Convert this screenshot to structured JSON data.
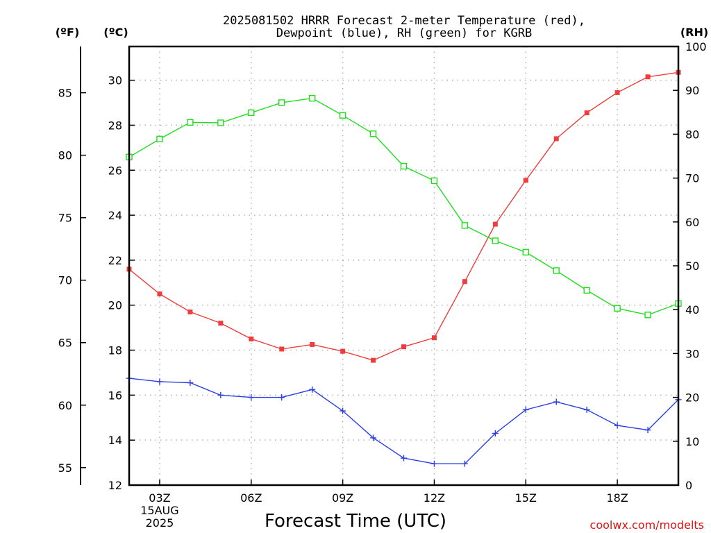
{
  "chart_data": {
    "type": "line",
    "title": [
      "2025081502 HRRR Forecast 2-meter Temperature (red),",
      "Dewpoint (blue), RH (green) for KGRB"
    ],
    "xlabel": "Forecast Time (UTC)",
    "credit": "coolwx.com/modelts",
    "units": {
      "fahrenheit": "(ºF)",
      "celsius": "(ºC)",
      "rh": "(RH)"
    },
    "x": [
      2,
      3,
      4,
      5,
      6,
      7,
      8,
      9,
      10,
      11,
      12,
      13,
      14,
      15,
      16,
      17,
      18,
      19,
      20
    ],
    "xlim": [
      2,
      20
    ],
    "x_ticks": [
      {
        "x": 3,
        "label": "03Z",
        "sub": [
          "15AUG",
          "2025"
        ]
      },
      {
        "x": 6,
        "label": "06Z"
      },
      {
        "x": 9,
        "label": "09Z"
      },
      {
        "x": 12,
        "label": "12Z"
      },
      {
        "x": 15,
        "label": "15Z"
      },
      {
        "x": 18,
        "label": "18Z"
      }
    ],
    "ylim_celsius": [
      12,
      31.5
    ],
    "y_ticks_celsius": [
      "12",
      "14",
      "16",
      "18",
      "20",
      "22",
      "24",
      "26",
      "28",
      "30"
    ],
    "y_ticks_fahrenheit": [
      "55",
      "60",
      "65",
      "70",
      "75",
      "80",
      "85"
    ],
    "ylim_rh": [
      0,
      100
    ],
    "y_ticks_rh": [
      "0",
      "10",
      "20",
      "30",
      "40",
      "50",
      "60",
      "70",
      "80",
      "90",
      "100"
    ],
    "grid": true,
    "series": [
      {
        "name": "Temperature",
        "axis": "celsius",
        "color": "#f03c3c",
        "marker": "square-filled",
        "values": [
          21.6,
          20.5,
          19.7,
          19.2,
          18.5,
          18.05,
          18.25,
          17.95,
          17.55,
          18.15,
          18.55,
          21.05,
          23.6,
          25.55,
          27.4,
          28.55,
          29.45,
          30.15,
          30.35
        ]
      },
      {
        "name": "Dewpoint",
        "axis": "celsius",
        "color": "#2a3ee8",
        "marker": "plus",
        "values": [
          16.75,
          16.6,
          16.55,
          16.0,
          15.9,
          15.9,
          16.25,
          15.3,
          14.1,
          13.2,
          12.95,
          12.95,
          14.3,
          15.35,
          15.7,
          15.35,
          14.65,
          14.45,
          15.8
        ]
      },
      {
        "name": "RH",
        "axis": "rh",
        "color": "#1ede1e",
        "marker": "square-open",
        "values": [
          74.8,
          78.9,
          82.7,
          82.6,
          84.9,
          87.2,
          88.2,
          84.3,
          80.1,
          72.7,
          69.4,
          59.2,
          55.7,
          53.1,
          48.9,
          44.4,
          40.3,
          38.8,
          41.4
        ]
      }
    ]
  }
}
